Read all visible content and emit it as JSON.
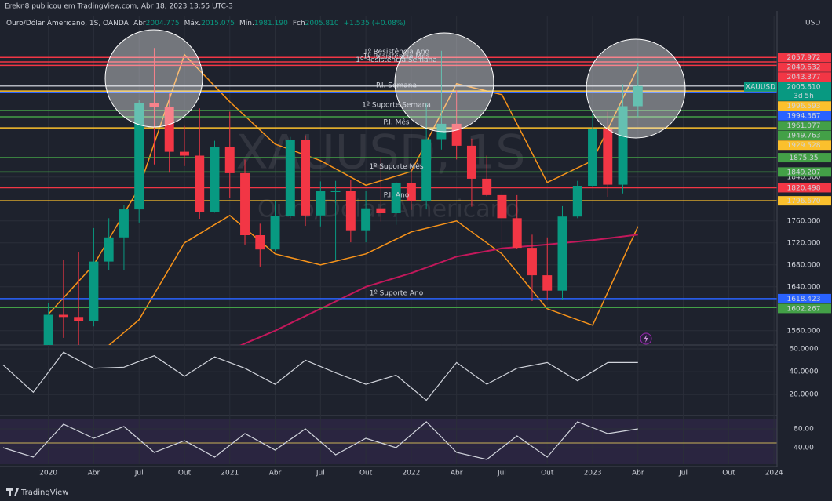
{
  "header": {
    "publisher": "Erekn8 publicou em TradingView.com, Abr 18, 2023 13:55 UTC-3",
    "symbol": "Ouro/Dólar Americano, 1S, OANDA",
    "quote": [
      {
        "label": "Abr",
        "value": "2004.775"
      },
      {
        "label": "Máx.",
        "value": "2015.075"
      },
      {
        "label": "Mín.",
        "value": "1981.190"
      },
      {
        "label": "Fch",
        "value": "2005.810"
      }
    ],
    "change": "+1.535 (+0.08%)",
    "currency": "USD"
  },
  "chart_data": [
    {
      "type": "candlestick",
      "watermark": [
        "XAUUSD, 1S",
        "Ouro/Dólar Americano"
      ],
      "x": [
        0,
        1,
        2,
        3,
        4,
        5,
        6,
        7,
        8,
        9,
        10,
        11,
        12,
        13,
        14,
        15,
        16,
        17,
        18,
        19,
        20,
        21,
        22,
        23,
        24,
        25,
        26,
        27,
        28,
        29,
        30,
        31,
        32,
        33,
        34,
        35,
        36,
        37,
        38,
        39
      ],
      "open": [
        1517,
        1589,
        1585,
        1577,
        1686,
        1730,
        1781,
        1975,
        1967,
        1886,
        1879,
        1776,
        1895,
        1847,
        1734,
        1708,
        1769,
        1907,
        1770,
        1814,
        1814,
        1743,
        1783,
        1774,
        1829,
        1797,
        1909,
        1937,
        1897,
        1837,
        1807,
        1765,
        1711,
        1661,
        1633,
        1768,
        1824,
        1928,
        1826,
        1969
      ],
      "high": [
        1611,
        1689,
        1703,
        1747,
        1765,
        1789,
        1981,
        2075,
        1992,
        1933,
        1965,
        1906,
        1959,
        1872,
        1755,
        1797,
        1913,
        1916,
        1832,
        1833,
        1834,
        1814,
        1877,
        1831,
        1853,
        1975,
        2070,
        1998,
        1910,
        1879,
        1814,
        1807,
        1735,
        1730,
        1787,
        1833,
        1960,
        1959,
        2009,
        2048
      ],
      "low": [
        1517,
        1547,
        1451,
        1568,
        1670,
        1671,
        1757,
        1863,
        1848,
        1860,
        1764,
        1775,
        1802,
        1717,
        1677,
        1705,
        1765,
        1751,
        1750,
        1688,
        1721,
        1721,
        1759,
        1753,
        1780,
        1781,
        1890,
        1872,
        1786,
        1805,
        1681,
        1709,
        1614,
        1617,
        1616,
        1765,
        1823,
        1804,
        1810,
        1949
      ],
      "close": [
        1589,
        1585,
        1577,
        1686,
        1730,
        1781,
        1975,
        1967,
        1886,
        1879,
        1776,
        1895,
        1847,
        1734,
        1708,
        1769,
        1907,
        1770,
        1814,
        1814,
        1743,
        1783,
        1774,
        1829,
        1797,
        1909,
        1937,
        1897,
        1837,
        1807,
        1765,
        1711,
        1661,
        1633,
        1768,
        1824,
        1928,
        1826,
        1969,
        2005.81
      ],
      "up_color": "#089981",
      "down_color": "#f23645",
      "bands": {
        "x": [
          0,
          3,
          6,
          9,
          12,
          15,
          18,
          21,
          24,
          27,
          30,
          33,
          36,
          39
        ],
        "upper": [
          1590,
          1680,
          1820,
          2063,
          1977,
          1900,
          1870,
          1825,
          1850,
          2010,
          1990,
          1830,
          1870,
          2040
        ],
        "lower": [
          1480,
          1510,
          1580,
          1720,
          1770,
          1700,
          1680,
          1700,
          1740,
          1760,
          1700,
          1600,
          1570,
          1750
        ],
        "ma200": [
          null,
          null,
          null,
          null,
          1525,
          1560,
          1600,
          1640,
          1665,
          1695,
          1710,
          1717,
          1725,
          1735
        ],
        "band_color": "#f7931a",
        "ma_color": "#c2185b"
      },
      "levels": [
        {
          "value": 2057.972,
          "color": "#f23645",
          "label": "1º Resistência Ano"
        },
        {
          "value": 2049.632,
          "color": "#f23645",
          "label": "1º Resistência Mês"
        },
        {
          "value": 2043.377,
          "color": "#f23645",
          "label": "1º Resistência Semana"
        },
        {
          "value": 1996.593,
          "color": "#fbc02d",
          "label": "P.I. Semana"
        },
        {
          "value": 1994.387,
          "color": "#2962ff"
        },
        {
          "value": 1961.077,
          "color": "#43a047",
          "label": "1º Suporte Semana"
        },
        {
          "value": 1949.763,
          "color": "#43a047"
        },
        {
          "value": 1929.528,
          "color": "#fbc02d",
          "label": "P.I. Mês"
        },
        {
          "value": 1875.35,
          "color": "#43a047"
        },
        {
          "value": 1849.207,
          "color": "#43a047",
          "label": "1º Suporte Mês"
        },
        {
          "value": 1820.498,
          "color": "#f23645"
        },
        {
          "value": 1796.67,
          "value_label": "1796.670",
          "color": "#fbc02d",
          "label": "P.I. Ano"
        },
        {
          "value": 1618.423,
          "color": "#2962ff",
          "label": "1º Suporte Ano"
        },
        {
          "value": 1602.267,
          "color": "#43a047"
        }
      ],
      "current": {
        "value": 2005.81,
        "value_label": "2005.810",
        "tag": "XAUUSD",
        "countdown": "3d 5h",
        "color": "#089981"
      },
      "xlim": [
        -3.2,
        48.2
      ],
      "xticks": [
        {
          "value": 0,
          "label": "2020"
        },
        {
          "value": 3,
          "label": "Abr"
        },
        {
          "value": 6,
          "label": "Jul"
        },
        {
          "value": 9,
          "label": "Out"
        },
        {
          "value": 12,
          "label": "2021"
        },
        {
          "value": 15,
          "label": "Abr"
        },
        {
          "value": 18,
          "label": "Jul"
        },
        {
          "value": 21,
          "label": "Out"
        },
        {
          "value": 24,
          "label": "2022"
        },
        {
          "value": 27,
          "label": "Abr"
        },
        {
          "value": 30,
          "label": "Jul"
        },
        {
          "value": 33,
          "label": "Out"
        },
        {
          "value": 36,
          "label": "2023"
        },
        {
          "value": 39,
          "label": "Abr"
        },
        {
          "value": 42,
          "label": "Jul"
        },
        {
          "value": 45,
          "label": "Out"
        },
        {
          "value": 48,
          "label": "2024"
        }
      ],
      "ylim": [
        1534,
        2134
      ],
      "yticks": [
        {
          "value": 1560,
          "label": "1560.000"
        },
        {
          "value": 1640,
          "label": "1640.000"
        },
        {
          "value": 1680,
          "label": "1680.000"
        },
        {
          "value": 1720,
          "label": "1720.000"
        },
        {
          "value": 1760,
          "label": "1760.000"
        },
        {
          "value": 1840,
          "label": "1840.000"
        }
      ],
      "grid": true
    },
    {
      "type": "line",
      "x": [
        -3,
        -1,
        1,
        3,
        5,
        7,
        9,
        11,
        13,
        15,
        17,
        19,
        21,
        23,
        25,
        27,
        29,
        31,
        33,
        35,
        37,
        39
      ],
      "values": [
        46,
        22,
        57,
        43,
        44,
        54,
        36,
        53,
        43,
        29,
        50,
        39,
        29,
        37,
        15,
        48,
        29,
        43,
        48,
        32,
        48,
        48
      ],
      "color": "#d1d4dc",
      "xlim": [
        -3.2,
        48.2
      ],
      "ylim": [
        3,
        63.4
      ],
      "yticks": [
        {
          "value": 20,
          "label": "20.0000"
        },
        {
          "value": 40,
          "label": "40.0000"
        },
        {
          "value": 60,
          "label": "60.0000"
        }
      ]
    },
    {
      "type": "line",
      "x": [
        -3,
        -1,
        1,
        3,
        5,
        7,
        9,
        11,
        13,
        15,
        17,
        19,
        21,
        23,
        25,
        27,
        29,
        31,
        33,
        35,
        37,
        39
      ],
      "values": [
        40,
        20,
        90,
        60,
        85,
        30,
        55,
        20,
        70,
        35,
        80,
        25,
        60,
        40,
        95,
        30,
        15,
        65,
        20,
        95,
        70,
        80
      ],
      "color": "#d1d4dc",
      "midline": 50,
      "midline_color": "#c9b458",
      "xlim": [
        -3.2,
        48.2
      ],
      "ylim": [
        5,
        100
      ],
      "yticks": [
        {
          "value": 40,
          "label": "40.00"
        },
        {
          "value": 80,
          "label": "80.00"
        }
      ]
    }
  ],
  "footer": {
    "brand": "TradingView"
  }
}
